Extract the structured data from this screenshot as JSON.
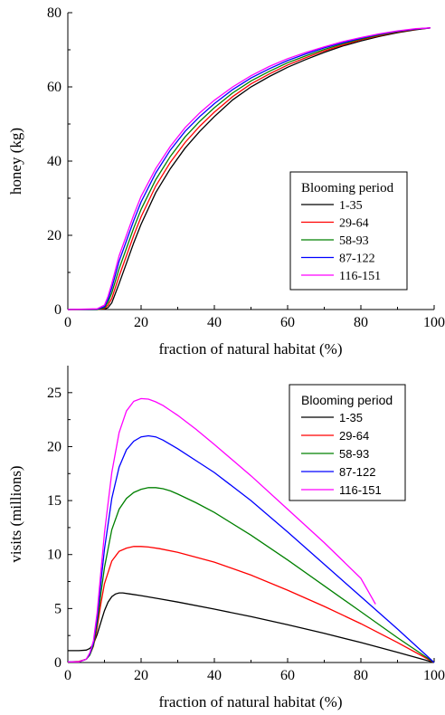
{
  "chart_data": [
    {
      "type": "line",
      "xlabel": "fraction of natural habitat (%)",
      "ylabel": "honey (kg)",
      "xlim": [
        0,
        100
      ],
      "ylim": [
        0,
        80
      ],
      "xticks": [
        "0",
        "20",
        "40",
        "60",
        "80",
        "100"
      ],
      "yticks": [
        "0",
        "20",
        "40",
        "60",
        "80"
      ],
      "grid": false,
      "legend_position": "lower-right",
      "legend_title": "Blooming period",
      "series": [
        {
          "name": "1-35",
          "color": "#000000",
          "x": [
            0,
            8,
            10,
            11,
            12,
            14,
            16,
            18,
            20,
            24,
            28,
            32,
            36,
            40,
            45,
            50,
            55,
            60,
            65,
            70,
            75,
            80,
            85,
            90,
            95,
            99
          ],
          "y": [
            0,
            0,
            0.1,
            0.5,
            1.8,
            7,
            12.5,
            18,
            23,
            31.5,
            38,
            43.5,
            48,
            52,
            56.5,
            60,
            62.8,
            65.3,
            67.4,
            69.3,
            71,
            72.4,
            73.6,
            74.6,
            75.4,
            75.9
          ]
        },
        {
          "name": "29-64",
          "color": "#ff0000",
          "x": [
            0,
            8,
            10,
            11,
            12,
            14,
            16,
            18,
            20,
            24,
            28,
            32,
            36,
            40,
            45,
            50,
            55,
            60,
            65,
            70,
            75,
            80,
            85,
            90,
            95,
            99
          ],
          "y": [
            0,
            0,
            0.3,
            1.2,
            3,
            9,
            14.5,
            20,
            25,
            33.3,
            39.7,
            45,
            49.4,
            53.2,
            57.4,
            60.8,
            63.5,
            65.9,
            67.9,
            69.7,
            71.3,
            72.7,
            73.8,
            74.8,
            75.5,
            75.9
          ]
        },
        {
          "name": "58-93",
          "color": "#008000",
          "x": [
            0,
            8,
            10,
            11,
            12,
            14,
            16,
            18,
            20,
            24,
            28,
            32,
            36,
            40,
            45,
            50,
            55,
            60,
            65,
            70,
            75,
            80,
            85,
            90,
            95,
            99
          ],
          "y": [
            0,
            0,
            0.5,
            2,
            4.5,
            11,
            16.5,
            22,
            27,
            35,
            41.3,
            46.5,
            50.7,
            54.4,
            58.4,
            61.6,
            64.2,
            66.5,
            68.4,
            70.1,
            71.6,
            72.9,
            74,
            74.9,
            75.6,
            75.9
          ]
        },
        {
          "name": "87-122",
          "color": "#0000ff",
          "x": [
            0,
            8,
            10,
            11,
            12,
            14,
            16,
            18,
            20,
            24,
            28,
            32,
            36,
            40,
            45,
            50,
            55,
            60,
            65,
            70,
            75,
            80,
            85,
            90,
            95,
            99
          ],
          "y": [
            0,
            0.1,
            0.8,
            2.8,
            5.8,
            13,
            18.5,
            24,
            29,
            36.8,
            43,
            48,
            52,
            55.5,
            59.3,
            62.4,
            64.9,
            67.1,
            68.9,
            70.5,
            71.9,
            73.1,
            74.2,
            75,
            75.6,
            75.9
          ]
        },
        {
          "name": "116-151",
          "color": "#ff00ff",
          "x": [
            0,
            8,
            10,
            11,
            12,
            14,
            16,
            18,
            20,
            24,
            28,
            32,
            36,
            40,
            45,
            50,
            55,
            60,
            65,
            70,
            75,
            80,
            85,
            90,
            95,
            99
          ],
          "y": [
            0,
            0.2,
            1.2,
            3.6,
            7,
            14.5,
            20,
            25.5,
            30.5,
            38,
            44,
            49,
            53,
            56.4,
            60,
            63,
            65.5,
            67.6,
            69.3,
            70.8,
            72.2,
            73.3,
            74.3,
            75.1,
            75.7,
            75.9
          ]
        }
      ]
    },
    {
      "type": "line",
      "xlabel": "fraction of natural habitat (%)",
      "ylabel": "visits (millions)",
      "xlim": [
        0,
        100
      ],
      "ylim": [
        0,
        27.5
      ],
      "xticks": [
        "0",
        "20",
        "40",
        "60",
        "80",
        "100"
      ],
      "yticks": [
        "0",
        "5",
        "10",
        "15",
        "20",
        "25"
      ],
      "grid": false,
      "legend_position": "top-right",
      "legend_title": "Blooming period",
      "series": [
        {
          "name": "1-35",
          "color": "#000000",
          "x": [
            0,
            3,
            5,
            6,
            7,
            8,
            9,
            10,
            11,
            12,
            13,
            14,
            15,
            17,
            20,
            25,
            30,
            40,
            50,
            60,
            70,
            80,
            90,
            100
          ],
          "y": [
            1.1,
            1.1,
            1.15,
            1.3,
            1.7,
            2.6,
            3.7,
            4.8,
            5.6,
            6.1,
            6.35,
            6.45,
            6.45,
            6.35,
            6.2,
            5.9,
            5.6,
            4.95,
            4.25,
            3.5,
            2.7,
            1.85,
            0.95,
            0
          ]
        },
        {
          "name": "29-64",
          "color": "#ff0000",
          "x": [
            0,
            3,
            5,
            6,
            7,
            8,
            9,
            10,
            12,
            14,
            16,
            18,
            20,
            22,
            25,
            30,
            40,
            50,
            60,
            70,
            80,
            90,
            100
          ],
          "y": [
            0.05,
            0.1,
            0.3,
            0.7,
            1.5,
            3.2,
            5.4,
            7.3,
            9.4,
            10.3,
            10.6,
            10.75,
            10.75,
            10.7,
            10.55,
            10.2,
            9.3,
            8.1,
            6.7,
            5.2,
            3.6,
            1.85,
            0
          ]
        },
        {
          "name": "58-93",
          "color": "#008000",
          "x": [
            0,
            3,
            5,
            6,
            7,
            8,
            9,
            10,
            12,
            14,
            16,
            18,
            20,
            22,
            24,
            26,
            28,
            30,
            35,
            40,
            50,
            60,
            70,
            80,
            90,
            100
          ],
          "y": [
            0.05,
            0.05,
            0.3,
            0.7,
            1.6,
            3.6,
            6.3,
            8.8,
            12.3,
            14.2,
            15.2,
            15.75,
            16.05,
            16.2,
            16.2,
            16.1,
            15.9,
            15.6,
            14.8,
            13.9,
            11.8,
            9.5,
            7.1,
            4.7,
            2.3,
            0
          ]
        },
        {
          "name": "87-122",
          "color": "#0000ff",
          "x": [
            0,
            3,
            5,
            6,
            7,
            8,
            9,
            10,
            12,
            14,
            16,
            18,
            20,
            22,
            24,
            26,
            28,
            30,
            35,
            40,
            50,
            60,
            70,
            80,
            90,
            100
          ],
          "y": [
            0.05,
            0.05,
            0.3,
            0.8,
            1.8,
            4.1,
            7.3,
            10.5,
            15.2,
            18.1,
            19.7,
            20.5,
            20.9,
            21,
            20.9,
            20.6,
            20.2,
            19.8,
            18.7,
            17.6,
            15,
            12.1,
            9.1,
            6.1,
            3.1,
            0
          ]
        },
        {
          "name": "116-151",
          "color": "#ff00ff",
          "x": [
            0,
            3,
            5,
            6,
            7,
            8,
            9,
            10,
            12,
            14,
            16,
            18,
            20,
            22,
            24,
            26,
            28,
            30,
            35,
            40,
            50,
            60,
            70,
            80,
            84
          ],
          "y": [
            0.05,
            0.05,
            0.3,
            0.9,
            2,
            4.6,
            8.3,
            12,
            17.6,
            21.3,
            23.3,
            24.2,
            24.45,
            24.4,
            24.15,
            23.8,
            23.35,
            22.9,
            21.6,
            20.2,
            17.3,
            14.2,
            11.1,
            7.8,
            5.4
          ]
        }
      ]
    }
  ]
}
